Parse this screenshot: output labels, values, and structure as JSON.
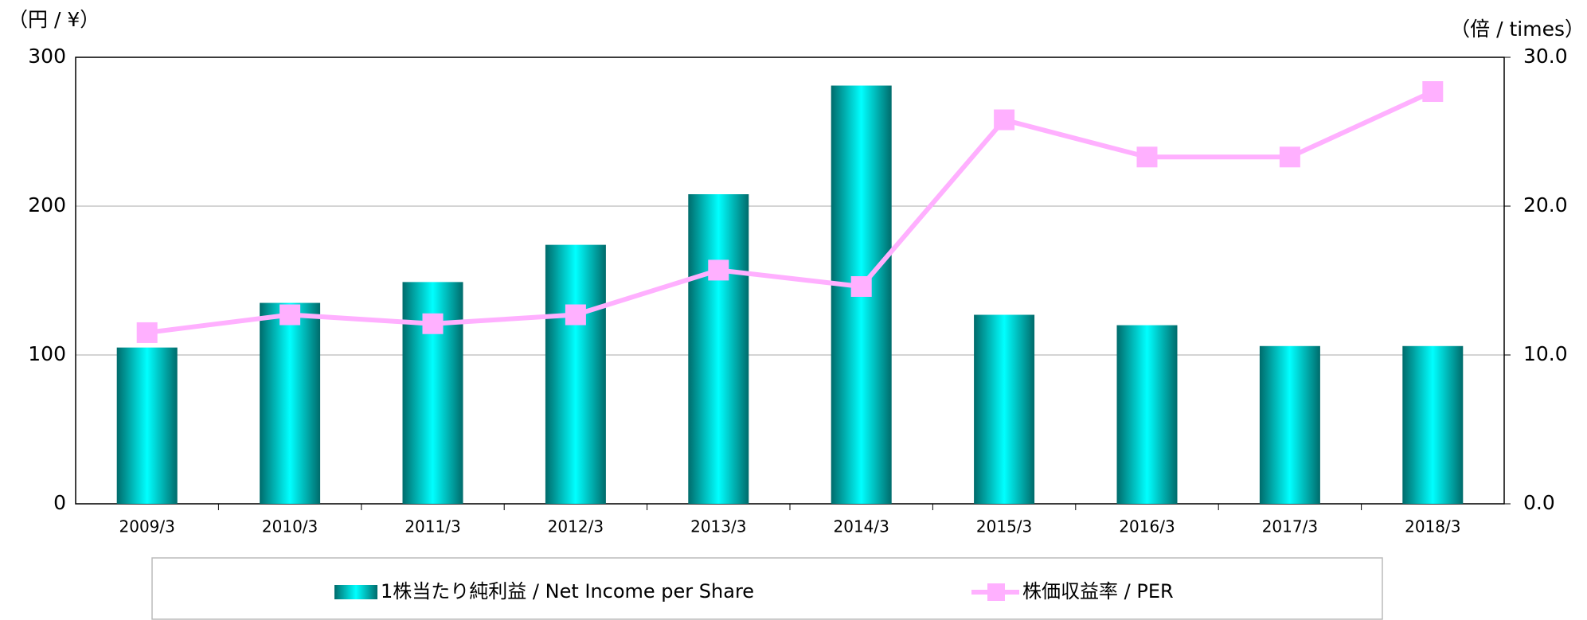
{
  "chart_data": {
    "type": "bar_line",
    "y_axis_label": "（円 / ¥）",
    "y2_axis_label": "（倍 / times）",
    "categories": [
      "2009/3",
      "2010/3",
      "2011/3",
      "2012/3",
      "2013/3",
      "2014/3",
      "2015/3",
      "2016/3",
      "2017/3",
      "2018/3"
    ],
    "series": [
      {
        "name": "1株当たり純利益 / Net Income per Share",
        "type": "bar",
        "color": "#00e8e8",
        "values": [
          105,
          135,
          149,
          174,
          208,
          281,
          127,
          120,
          106,
          106
        ]
      },
      {
        "name": "株価収益率 / PER",
        "type": "line",
        "axis": "y2",
        "color": "#ffb0ff",
        "values": [
          11.5,
          12.7,
          12.1,
          12.7,
          15.7,
          14.6,
          25.8,
          23.3,
          23.3,
          27.7
        ]
      }
    ],
    "ylim": [
      0,
      300
    ],
    "yticks": [
      0,
      100,
      200,
      300
    ],
    "y2lim": [
      0,
      30
    ],
    "y2ticks": [
      {
        "value": 0,
        "label": "0.0"
      },
      {
        "value": 10,
        "label": "10.0"
      },
      {
        "value": 20,
        "label": "20.0"
      },
      {
        "value": 30,
        "label": "30.0"
      }
    ],
    "grid": true,
    "legend": "bottom"
  }
}
